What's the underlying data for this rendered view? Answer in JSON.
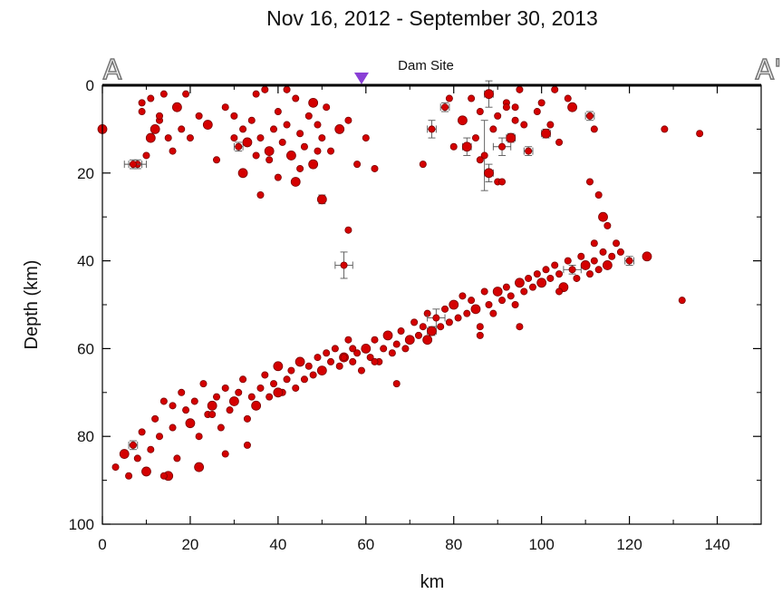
{
  "chart_data": {
    "type": "scatter",
    "title": "Nov 16, 2012 - September 30, 2013",
    "xlabel": "km",
    "ylabel": "Depth (km)",
    "xlim": [
      0,
      150
    ],
    "ylim": [
      0,
      100
    ],
    "y_inverted": true,
    "grid": false,
    "legend": "none",
    "x_ticks": [
      0,
      20,
      40,
      60,
      80,
      100,
      120,
      140
    ],
    "y_ticks": [
      0,
      20,
      40,
      60,
      80,
      100
    ],
    "annotations": {
      "site_label": "Dam Site",
      "site_x": 59,
      "profile_start": "A",
      "profile_end": "A'"
    },
    "colors": {
      "marker_fill": "#d40000",
      "marker_edge": "#7a0000",
      "error_bar": "#555555",
      "site_marker": "#8a3fd6"
    },
    "series": [
      {
        "x": [
          0,
          8,
          9,
          10,
          11,
          12,
          13,
          14,
          15,
          16,
          17,
          18,
          19,
          20,
          22,
          24,
          26,
          28,
          7,
          9,
          11,
          13,
          30,
          31,
          32,
          33,
          34,
          35,
          36,
          37,
          38,
          39,
          40,
          41,
          42,
          43,
          44,
          45,
          46,
          47,
          48,
          49,
          50,
          51,
          52,
          54,
          56,
          58,
          60,
          62,
          32,
          35,
          38,
          42,
          45,
          48,
          30,
          40,
          49,
          36,
          44,
          73,
          75,
          78,
          80,
          82,
          84,
          85,
          86,
          87,
          88,
          89,
          90,
          91,
          92,
          93,
          94,
          95,
          96,
          97,
          88,
          90,
          92,
          94,
          79,
          83,
          86,
          91,
          99,
          100,
          101,
          102,
          103,
          104,
          106,
          107,
          111,
          112
        ],
        "y": [
          10,
          18,
          6,
          16,
          3,
          10,
          8,
          2,
          12,
          15,
          5,
          10,
          2,
          12,
          7,
          9,
          17,
          5,
          18,
          4,
          12,
          7,
          12,
          14,
          10,
          13,
          8,
          16,
          12,
          1,
          15,
          10,
          6,
          13,
          9,
          16,
          3,
          11,
          14,
          7,
          18,
          9,
          12,
          5,
          15,
          10,
          8,
          18,
          12,
          19,
          20,
          2,
          17,
          1,
          19,
          4,
          7,
          21,
          15,
          25,
          22,
          18,
          10,
          5,
          14,
          8,
          3,
          12,
          6,
          16,
          2,
          10,
          7,
          14,
          4,
          12,
          5,
          1,
          9,
          15,
          20,
          22,
          5,
          8,
          3,
          14,
          17,
          22,
          6,
          4,
          11,
          9,
          1,
          13,
          3,
          5,
          7,
          10
        ],
        "x_err": [
          0,
          2,
          0,
          0,
          0,
          0,
          0,
          0,
          0,
          0,
          0,
          0,
          0,
          0,
          0,
          0,
          0,
          0,
          2,
          0,
          0,
          0,
          0,
          1,
          0,
          0,
          0,
          0,
          0,
          0,
          0,
          0,
          0,
          0,
          0,
          0,
          0,
          0,
          0,
          0,
          0,
          0,
          0,
          0,
          0,
          0,
          0,
          0,
          0,
          0,
          0,
          0,
          0,
          0,
          0,
          0,
          0,
          0,
          0,
          0,
          0,
          0,
          1,
          1,
          0,
          0,
          0,
          0,
          0,
          0,
          1,
          0,
          0,
          2,
          0,
          1,
          0,
          0,
          0,
          1,
          1,
          0,
          0,
          0,
          0,
          1,
          0,
          0,
          0,
          0,
          1,
          0,
          0,
          0,
          0,
          0,
          1,
          0
        ],
        "y_err": [
          0,
          1,
          0,
          0,
          0,
          0,
          0,
          0,
          0,
          0,
          0,
          0,
          0,
          0,
          0,
          0,
          0,
          0,
          1,
          0,
          0,
          0,
          0,
          1,
          0,
          0,
          0,
          0,
          0,
          0,
          0,
          0,
          0,
          0,
          0,
          0,
          0,
          0,
          0,
          0,
          0,
          0,
          0,
          0,
          0,
          0,
          0,
          0,
          0,
          0,
          0,
          0,
          0,
          0,
          0,
          0,
          0,
          0,
          0,
          0,
          0,
          0,
          2,
          1,
          0,
          0,
          0,
          0,
          0,
          8,
          3,
          0,
          0,
          2,
          0,
          1,
          0,
          0,
          0,
          1,
          2,
          0,
          0,
          0,
          0,
          2,
          0,
          0,
          0,
          0,
          1,
          0,
          0,
          0,
          0,
          0,
          1,
          0
        ]
      },
      {
        "x": [
          3,
          5,
          6,
          7,
          8,
          9,
          10,
          11,
          12,
          13,
          14,
          15,
          16,
          17,
          18,
          19,
          20,
          21,
          22,
          23,
          24,
          25,
          26,
          27,
          28,
          29,
          30,
          31,
          32,
          33,
          34,
          35,
          36,
          37,
          38,
          39,
          40,
          41,
          42,
          43,
          44,
          45,
          46,
          47,
          48,
          49,
          50,
          51,
          52,
          53,
          54,
          55,
          56,
          57,
          58,
          59,
          60,
          61,
          62,
          63,
          64,
          65,
          66,
          67,
          68,
          69,
          70,
          71,
          72,
          73,
          74,
          75,
          76,
          77,
          78,
          79,
          80,
          81,
          82,
          83,
          84,
          85,
          86,
          87,
          88,
          89,
          90,
          91,
          92,
          93,
          94,
          95,
          96,
          97,
          98,
          99,
          100,
          101,
          102,
          103,
          104,
          105,
          106,
          107,
          108,
          109,
          110,
          111,
          112,
          113,
          114,
          115,
          116,
          117,
          118,
          120,
          124,
          128,
          132,
          136,
          14,
          22,
          28,
          33,
          16,
          25,
          40,
          55,
          57,
          62,
          67,
          74,
          86,
          95,
          104,
          112,
          114,
          113,
          111,
          115
        ],
        "y": [
          87,
          84,
          89,
          82,
          85,
          79,
          88,
          83,
          76,
          80,
          72,
          89,
          78,
          85,
          70,
          74,
          77,
          72,
          80,
          68,
          75,
          73,
          71,
          78,
          69,
          74,
          72,
          70,
          67,
          76,
          71,
          73,
          69,
          66,
          71,
          68,
          64,
          70,
          67,
          65,
          69,
          63,
          67,
          64,
          66,
          62,
          65,
          61,
          63,
          60,
          64,
          62,
          58,
          63,
          61,
          65,
          60,
          62,
          58,
          63,
          60,
          57,
          61,
          59,
          56,
          60,
          58,
          54,
          57,
          55,
          52,
          56,
          53,
          55,
          51,
          54,
          50,
          53,
          48,
          52,
          49,
          51,
          55,
          47,
          50,
          52,
          47,
          49,
          46,
          48,
          50,
          45,
          47,
          44,
          46,
          43,
          45,
          42,
          44,
          41,
          43,
          46,
          40,
          42,
          44,
          39,
          41,
          43,
          40,
          42,
          38,
          41,
          39,
          36,
          38,
          40,
          39,
          10,
          49,
          11,
          89,
          87,
          84,
          82,
          73,
          75,
          70,
          62,
          60,
          63,
          68,
          58,
          57,
          55,
          47,
          36,
          30,
          25,
          22,
          32
        ],
        "x_err": [
          0,
          0,
          0,
          1,
          0,
          0,
          0,
          0,
          0,
          0,
          0,
          0,
          0,
          0,
          0,
          0,
          0,
          0,
          0,
          0,
          0,
          0,
          0,
          0,
          0,
          0,
          0,
          0,
          0,
          0,
          0,
          0,
          0,
          0,
          0,
          0,
          0,
          0,
          0,
          0,
          0,
          0,
          0,
          0,
          0,
          0,
          0,
          0,
          0,
          0,
          0,
          0,
          0,
          0,
          0,
          0,
          0,
          0,
          0,
          0,
          0,
          0,
          0,
          0,
          0,
          0,
          0,
          0,
          0,
          0,
          0,
          1,
          2,
          0,
          0,
          0,
          0,
          0,
          0,
          0,
          0,
          0,
          0,
          0,
          0,
          0,
          0,
          0,
          0,
          0,
          0,
          0,
          0,
          0,
          0,
          0,
          0,
          0,
          0,
          0,
          0,
          0,
          0,
          2,
          0,
          0,
          0,
          0,
          0,
          0,
          0,
          0,
          0,
          0,
          0,
          1,
          0,
          0,
          0,
          0,
          0,
          0,
          0,
          0,
          0,
          0,
          0,
          0,
          0,
          0,
          0,
          0,
          0,
          0,
          0,
          0,
          0,
          0,
          0,
          0
        ],
        "y_err": [
          0,
          0,
          0,
          1,
          0,
          0,
          0,
          0,
          0,
          0,
          0,
          0,
          0,
          0,
          0,
          0,
          0,
          0,
          0,
          0,
          0,
          0,
          0,
          0,
          0,
          0,
          0,
          0,
          0,
          0,
          0,
          0,
          0,
          0,
          0,
          0,
          0,
          0,
          0,
          0,
          0,
          0,
          0,
          0,
          0,
          0,
          0,
          0,
          0,
          0,
          0,
          0,
          0,
          0,
          0,
          0,
          0,
          0,
          0,
          0,
          0,
          0,
          0,
          0,
          0,
          0,
          0,
          0,
          0,
          0,
          0,
          1,
          2,
          0,
          0,
          0,
          0,
          0,
          0,
          0,
          0,
          0,
          0,
          0,
          0,
          0,
          0,
          0,
          0,
          0,
          0,
          0,
          0,
          0,
          0,
          0,
          0,
          0,
          0,
          0,
          0,
          0,
          0,
          1,
          0,
          0,
          0,
          0,
          0,
          0,
          0,
          0,
          0,
          0,
          0,
          1,
          0,
          0,
          0,
          0,
          0,
          0,
          0,
          0,
          0,
          0,
          0,
          0,
          0,
          0,
          0,
          0,
          0,
          0,
          0,
          0,
          0,
          0,
          0,
          0
        ]
      },
      {
        "x": [
          55,
          56,
          50
        ],
        "y": [
          41,
          33,
          26
        ],
        "x_err": [
          2,
          0,
          0
        ],
        "y_err": [
          3,
          0,
          1
        ]
      }
    ]
  }
}
